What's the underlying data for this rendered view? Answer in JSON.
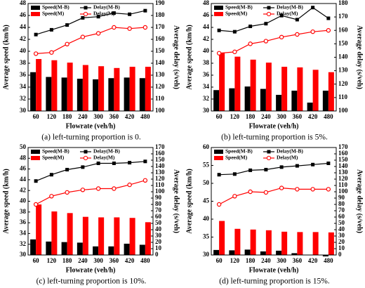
{
  "chart_data": [
    {
      "type": "bar-line",
      "caption": "(a)  left-turning proportion is 0.",
      "x_label": "Flowrate (veh/h)",
      "y_label": "Average speed (km/h)",
      "y2_label": "Average delay (s/veh)",
      "categories": [
        "60",
        "120",
        "180",
        "240",
        "300",
        "360",
        "420",
        "480"
      ],
      "ylim": [
        30,
        48
      ],
      "yticks": [
        30,
        32,
        34,
        36,
        38,
        40,
        42,
        44,
        46,
        48
      ],
      "y2lim": [
        100,
        190
      ],
      "y2ticks": [
        100,
        110,
        120,
        130,
        140,
        150,
        160,
        170,
        180,
        190
      ],
      "grid": false,
      "series": [
        {
          "name": "Speed(M-B)",
          "type": "bar",
          "color": "#000000",
          "values": [
            36.5,
            35.7,
            35.6,
            35.4,
            35.3,
            35.5,
            35.6,
            35.5
          ]
        },
        {
          "name": "Speed(M)",
          "type": "bar",
          "color": "#ff0000",
          "values": [
            38.7,
            38.5,
            38.1,
            37.7,
            37.5,
            37.2,
            37.4,
            37.4
          ]
        },
        {
          "name": "Delay(M-B)",
          "type": "line",
          "marker": "square",
          "axis": "y2",
          "color": "#000000",
          "values": [
            164,
            168,
            172,
            178,
            179,
            182,
            181,
            184
          ]
        },
        {
          "name": "Delay(M)",
          "type": "line",
          "marker": "circle",
          "axis": "y2",
          "color": "#ff0000",
          "values": [
            148,
            149,
            156,
            162,
            165,
            170,
            169,
            170
          ]
        }
      ]
    },
    {
      "type": "bar-line",
      "caption": "(b)  left-turning proportion is 5%.",
      "x_label": "Flowrate (veh/h)",
      "y_label": "Average speed (km/h)",
      "y2_label": "Average delay (s/veh)",
      "categories": [
        "60",
        "120",
        "180",
        "240",
        "300",
        "360",
        "420",
        "480"
      ],
      "ylim": [
        30,
        48
      ],
      "yticks": [
        30,
        32,
        34,
        36,
        38,
        40,
        42,
        44,
        46,
        48
      ],
      "y2lim": [
        100,
        180
      ],
      "y2ticks": [
        100,
        110,
        120,
        130,
        140,
        150,
        160,
        170,
        180
      ],
      "grid": false,
      "series": [
        {
          "name": "Speed(M-B)",
          "type": "bar",
          "color": "#000000",
          "values": [
            33.5,
            33.8,
            34.1,
            33.7,
            32.7,
            33.4,
            31.4,
            33.4
          ]
        },
        {
          "name": "Speed(M)",
          "type": "bar",
          "color": "#ff0000",
          "values": [
            39.7,
            39.1,
            38.6,
            38.1,
            37.4,
            37.3,
            36.9,
            36.5
          ]
        },
        {
          "name": "Delay(M-B)",
          "type": "line",
          "marker": "square",
          "axis": "y2",
          "color": "#000000",
          "values": [
            160,
            159,
            163,
            165,
            171,
            168,
            177,
            169
          ]
        },
        {
          "name": "Delay(M)",
          "type": "line",
          "marker": "circle",
          "axis": "y2",
          "color": "#ff0000",
          "values": [
            143,
            144,
            150,
            152,
            155,
            157,
            159,
            160
          ]
        }
      ]
    },
    {
      "type": "bar-line",
      "caption": "(c)  left-turning proportion is 10%.",
      "x_label": "Flowrate (veh/h)",
      "y_label": "Average speed (km/h)",
      "y2_label": "Average delay (s/veh)",
      "categories": [
        "60",
        "120",
        "180",
        "240",
        "300",
        "360",
        "420",
        "480"
      ],
      "ylim": [
        30,
        50
      ],
      "yticks": [
        30,
        32,
        34,
        36,
        38,
        40,
        42,
        44,
        46,
        48,
        50
      ],
      "y2lim": [
        0,
        170
      ],
      "y2ticks": [
        0,
        10,
        20,
        30,
        40,
        50,
        60,
        70,
        80,
        90,
        100,
        110,
        120,
        130,
        140,
        150,
        160,
        170
      ],
      "grid": false,
      "series": [
        {
          "name": "Speed(M-B)",
          "type": "bar",
          "color": "#000000",
          "values": [
            32.9,
            32.5,
            32.4,
            32.3,
            31.6,
            31.6,
            32.1,
            31.9
          ]
        },
        {
          "name": "Speed(M)",
          "type": "bar",
          "color": "#ff0000",
          "values": [
            39.4,
            38.1,
            37.8,
            37.1,
            37.0,
            37.0,
            36.9,
            36.1
          ]
        },
        {
          "name": "Delay(M-B)",
          "type": "line",
          "marker": "square",
          "axis": "y2",
          "color": "#000000",
          "values": [
            117,
            127,
            135,
            139,
            145,
            145,
            146,
            148
          ]
        },
        {
          "name": "Delay(M)",
          "type": "line",
          "marker": "circle",
          "axis": "y2",
          "color": "#ff0000",
          "values": [
            80,
            93,
            99,
            103,
            105,
            105,
            111,
            118
          ]
        }
      ]
    },
    {
      "type": "bar-line",
      "caption": "(d)  left-turning proportion is 15%.",
      "x_label": "Flowrate (veh/h)",
      "y_label": "Average speed (km/h)",
      "y2_label": "Average delay (s/veh)",
      "categories": [
        "60",
        "120",
        "180",
        "240",
        "300",
        "360",
        "420",
        "480"
      ],
      "ylim": [
        30,
        60
      ],
      "yticks": [
        30,
        35,
        40,
        45,
        50,
        55,
        60
      ],
      "y2lim": [
        0,
        170
      ],
      "y2ticks": [
        0,
        10,
        20,
        30,
        40,
        50,
        60,
        70,
        80,
        90,
        100,
        110,
        120,
        130,
        140,
        150,
        160,
        170
      ],
      "grid": false,
      "series": [
        {
          "name": "Speed(M-B)",
          "type": "bar",
          "color": "#000000",
          "values": [
            31.4,
            31.3,
            31.5,
            31.0,
            31.2,
            30.5,
            29.9,
            29.6
          ]
        },
        {
          "name": "Speed(M)",
          "type": "bar",
          "color": "#ff0000",
          "values": [
            39.5,
            37.3,
            37.1,
            36.9,
            36.5,
            36.4,
            36.4,
            36.3
          ]
        },
        {
          "name": "Delay(M-B)",
          "type": "line",
          "marker": "square",
          "axis": "y2",
          "color": "#000000",
          "values": [
            127,
            128,
            134,
            135,
            139,
            141,
            143,
            145
          ]
        },
        {
          "name": "Delay(M)",
          "type": "line",
          "marker": "circle",
          "axis": "y2",
          "color": "#ff0000",
          "values": [
            80,
            93,
            100,
            99,
            106,
            104,
            104,
            104
          ]
        }
      ]
    }
  ]
}
